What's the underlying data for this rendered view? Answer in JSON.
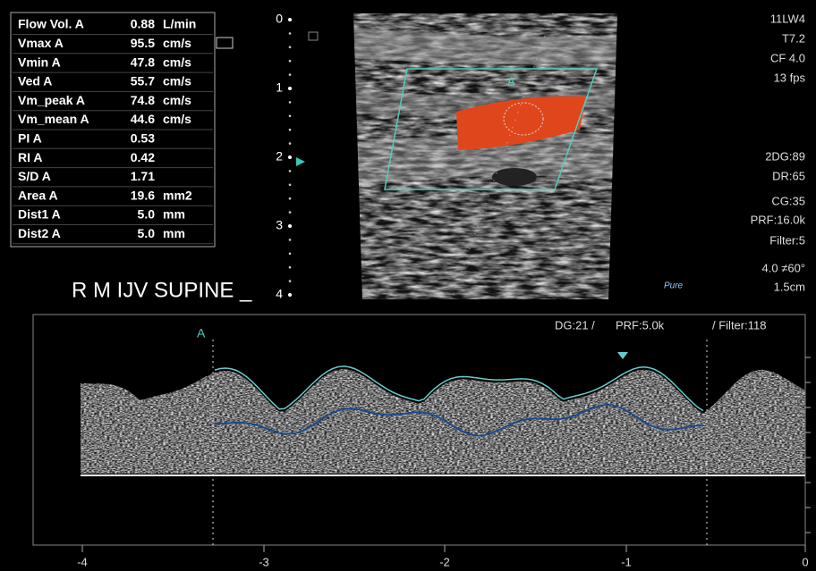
{
  "measurements": [
    {
      "label": "Flow Vol. A",
      "value": "0.88",
      "unit": "L/min"
    },
    {
      "label": "Vmax  A",
      "value": "95.5",
      "unit": "cm/s"
    },
    {
      "label": "Vmin  A",
      "value": "47.8",
      "unit": "cm/s"
    },
    {
      "label": "Ved  A",
      "value": "55.7",
      "unit": "cm/s"
    },
    {
      "label": "Vm_peak A",
      "value": "74.8",
      "unit": "cm/s"
    },
    {
      "label": "Vm_mean A",
      "value": "44.6",
      "unit": "cm/s"
    },
    {
      "label": "PI  A",
      "value": "0.53"
    },
    {
      "label": "RI  A",
      "value": "0.42"
    },
    {
      "label": "S/D  A",
      "value": "1.71"
    },
    {
      "label": "Area  A",
      "value": "19.6",
      "unit": "mm2"
    },
    {
      "label": "Dist1  A",
      "value": "5.0",
      "unit": "mm"
    },
    {
      "label": "Dist2  A",
      "value": "5.0",
      "unit": "mm"
    }
  ],
  "depth_scale": [
    "0",
    "1",
    "2",
    "3",
    "4"
  ],
  "image_marker": "A",
  "settings_top": [
    "11LW4",
    "T7.2",
    "CF 4.0",
    "13 fps"
  ],
  "settings_bottom": [
    "2DG:89",
    "DR:65",
    "CG:35",
    "PRF:16.0k",
    "Filter:5",
    "4.0 ≠60°",
    "1.5cm"
  ],
  "logo": "Pure",
  "study_label": "R M IJV SUPINE _",
  "doppler": {
    "marker": "A",
    "header": [
      "DG:21 /",
      "PRF:5.0k",
      "/ Filter:118"
    ],
    "time_axis": [
      "-4",
      "-3",
      "-2",
      "-1",
      "0"
    ]
  }
}
